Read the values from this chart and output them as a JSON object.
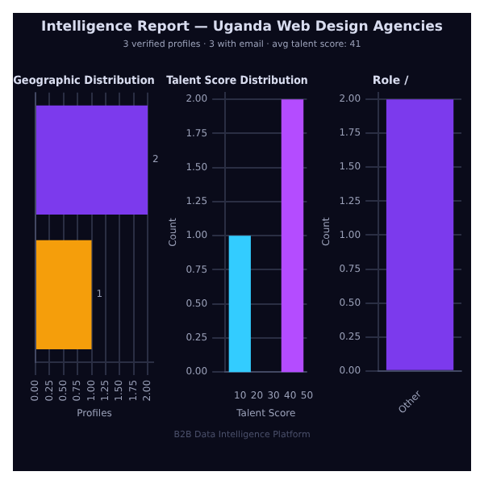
{
  "chart_data": [
    {
      "type": "other",
      "title": "Intelligence Report — Uganda Web Design Agencies",
      "subtitle": "3 verified profiles  ·  3 with email  ·  avg talent score: 41",
      "annotations": [
        "B2B Data Intelligence Platform"
      ]
    },
    {
      "type": "bar",
      "title": "Geographic Distribution",
      "orientation": "horizontal",
      "categories": [
        null,
        null
      ],
      "values": [
        2,
        1
      ],
      "colors": [
        "#7c3aed",
        "#f59e0b"
      ],
      "data_labels": true,
      "xlabel": "Profiles",
      "xlim": [
        0,
        2.1
      ],
      "xticks": [
        {
          "value": 0,
          "label": "0.00"
        },
        {
          "value": 0.25,
          "label": "0.25"
        },
        {
          "value": 0.5,
          "label": "0.50"
        },
        {
          "value": 0.75,
          "label": "0.75"
        },
        {
          "value": 1,
          "label": "1.00"
        },
        {
          "value": 1.25,
          "label": "1.25"
        },
        {
          "value": 1.5,
          "label": "1.50"
        },
        {
          "value": 1.75,
          "label": "1.75"
        },
        {
          "value": 2,
          "label": "2.00"
        }
      ],
      "grid": "x"
    },
    {
      "type": "histogram",
      "title": "Talent Score Distribution",
      "bins": [
        3.2,
        16.4,
        34.7,
        48
      ],
      "values": [
        1,
        0,
        2
      ],
      "colors": [
        "#33ccff",
        "#33ccff",
        "#b44cff"
      ],
      "xlabel": "Talent Score",
      "ylabel": "Count",
      "xlim": [
        1,
        50
      ],
      "xticks": [
        10,
        20,
        30,
        40,
        50
      ],
      "ylim": [
        0,
        2.05
      ],
      "yticks": [
        {
          "value": 0,
          "label": "0.00"
        },
        {
          "value": 0.25,
          "label": "0.25"
        },
        {
          "value": 0.5,
          "label": "0.50"
        },
        {
          "value": 0.75,
          "label": "0.75"
        },
        {
          "value": 1,
          "label": "1.00"
        },
        {
          "value": 1.25,
          "label": "1.25"
        },
        {
          "value": 1.5,
          "label": "1.50"
        },
        {
          "value": 1.75,
          "label": "1.75"
        },
        {
          "value": 2,
          "label": "2.00"
        }
      ],
      "grid": "y"
    },
    {
      "type": "bar",
      "title": "Role /",
      "categories": [
        "Other"
      ],
      "values": [
        2
      ],
      "colors": [
        "#7c3aed"
      ],
      "ylabel": "Count",
      "ylim": [
        0,
        2.05
      ],
      "yticks": [
        {
          "value": 0,
          "label": "0.00"
        },
        {
          "value": 0.25,
          "label": "0.25"
        },
        {
          "value": 0.5,
          "label": "0.50"
        },
        {
          "value": 0.75,
          "label": "0.75"
        },
        {
          "value": 1,
          "label": "1.00"
        },
        {
          "value": 1.25,
          "label": "1.25"
        },
        {
          "value": 1.5,
          "label": "1.50"
        },
        {
          "value": 1.75,
          "label": "1.75"
        },
        {
          "value": 2,
          "label": "2.00"
        }
      ],
      "grid": "y"
    }
  ]
}
